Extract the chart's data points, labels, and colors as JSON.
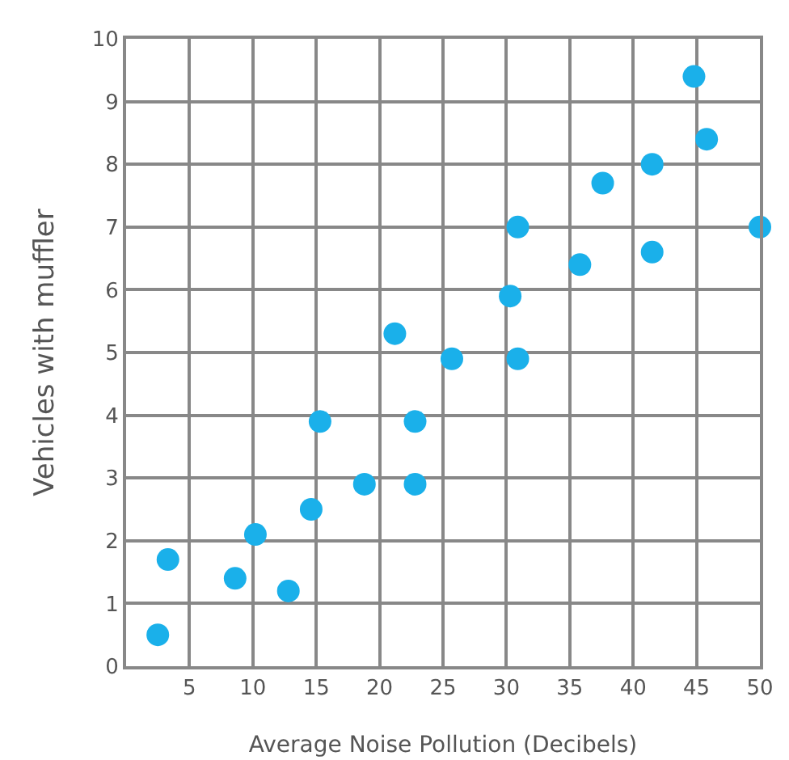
{
  "chart_data": {
    "type": "scatter",
    "xlabel": "Average Noise Pollution (Decibels)",
    "ylabel": "Vehicles with muffler",
    "x": [
      2.5,
      3.3,
      8.6,
      10.2,
      12.8,
      14.6,
      15.3,
      18.8,
      21.2,
      22.8,
      22.8,
      25.7,
      30.3,
      30.9,
      30.9,
      35.8,
      37.6,
      41.5,
      41.5,
      44.8,
      45.8,
      50
    ],
    "values": [
      0.5,
      1.7,
      1.4,
      2.1,
      1.2,
      2.5,
      3.9,
      2.9,
      5.3,
      3.9,
      2.9,
      4.9,
      5.9,
      7.0,
      4.9,
      6.4,
      7.7,
      8.0,
      6.6,
      9.4,
      8.4,
      7.0
    ],
    "color": "#1ab0ea",
    "marker": "circle",
    "grid": true,
    "xlim": [
      0,
      50
    ],
    "xticks": [
      5,
      10,
      15,
      20,
      25,
      30,
      35,
      40,
      45,
      50
    ],
    "ylim": [
      0,
      10
    ],
    "yticks": [
      0,
      1,
      2,
      3,
      4,
      5,
      6,
      7,
      8,
      9,
      10
    ]
  }
}
